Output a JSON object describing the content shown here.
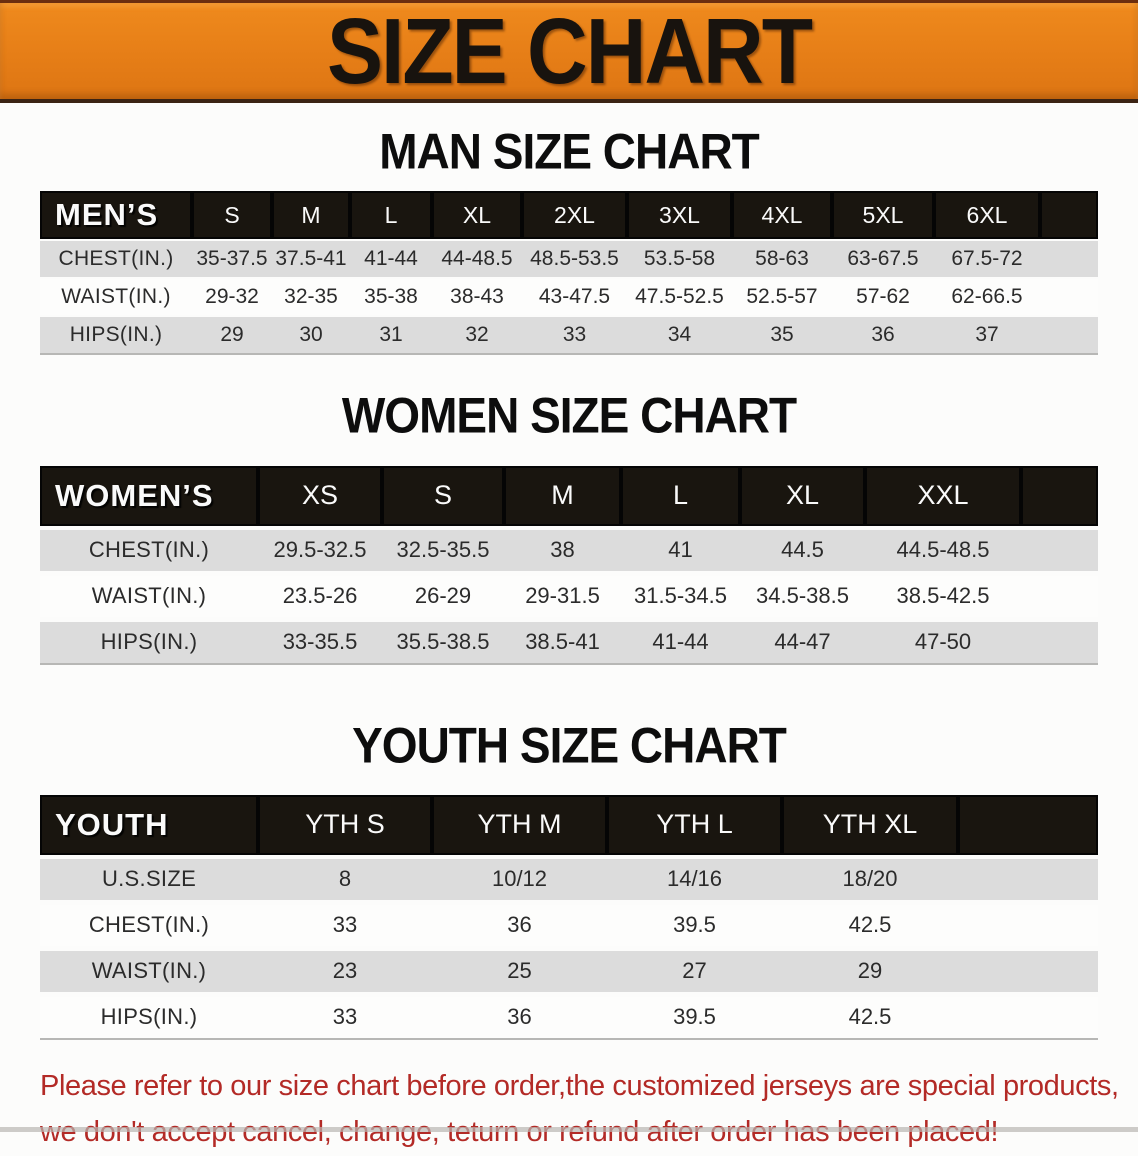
{
  "banner": {
    "title": "SIZE CHART"
  },
  "sections": [
    {
      "heading": "MAN SIZE CHART",
      "table": {
        "label": "MEN’S",
        "columns": [
          "S",
          "M",
          "L",
          "XL",
          "2XL",
          "3XL",
          "4XL",
          "5XL",
          "6XL"
        ],
        "rows": [
          {
            "label": "CHEST(IN.)",
            "values": [
              "35-37.5",
              "37.5-41",
              "41-44",
              "44-48.5",
              "48.5-53.5",
              "53.5-58",
              "58-63",
              "63-67.5",
              "67.5-72"
            ]
          },
          {
            "label": "WAIST(IN.)",
            "values": [
              "29-32",
              "32-35",
              "35-38",
              "38-43",
              "43-47.5",
              "47.5-52.5",
              "52.5-57",
              "57-62",
              "62-66.5"
            ]
          },
          {
            "label": "HIPS(IN.)",
            "values": [
              "29",
              "30",
              "31",
              "32",
              "33",
              "34",
              "35",
              "36",
              "37"
            ]
          }
        ]
      }
    },
    {
      "heading": "WOMEN SIZE CHART",
      "table": {
        "label": "WOMEN’S",
        "columns": [
          "XS",
          "S",
          "M",
          "L",
          "XL",
          "XXL"
        ],
        "rows": [
          {
            "label": "CHEST(IN.)",
            "values": [
              "29.5-32.5",
              "32.5-35.5",
              "38",
              "41",
              "44.5",
              "44.5-48.5"
            ]
          },
          {
            "label": "WAIST(IN.)",
            "values": [
              "23.5-26",
              "26-29",
              "29-31.5",
              "31.5-34.5",
              "34.5-38.5",
              "38.5-42.5"
            ]
          },
          {
            "label": "HIPS(IN.)",
            "values": [
              "33-35.5",
              "35.5-38.5",
              "38.5-41",
              "41-44",
              "44-47",
              "47-50"
            ]
          }
        ]
      }
    },
    {
      "heading": "YOUTH SIZE CHART",
      "table": {
        "label": "YOUTH",
        "columns": [
          "YTH S",
          "YTH M",
          "YTH L",
          "YTH XL"
        ],
        "rows": [
          {
            "label": "U.S.SIZE",
            "values": [
              "8",
              "10/12",
              "14/16",
              "18/20"
            ]
          },
          {
            "label": "CHEST(IN.)",
            "values": [
              "33",
              "36",
              "39.5",
              "42.5"
            ]
          },
          {
            "label": "WAIST(IN.)",
            "values": [
              "23",
              "25",
              "27",
              "29"
            ]
          },
          {
            "label": "HIPS(IN.)",
            "values": [
              "33",
              "36",
              "39.5",
              "42.5"
            ]
          }
        ]
      }
    }
  ],
  "disclaimer": {
    "line1": "Please refer to our size chart before order,the customized jerseys are special products,",
    "line2": "we don't accept cancel, change, teturn or refund after order has been placed!"
  },
  "colors": {
    "banner_bg": "#e67e17",
    "table_header_bg": "#19150f",
    "row_stripe_gray": "#dcdcdc",
    "disclaimer_red": "#b32a26"
  }
}
